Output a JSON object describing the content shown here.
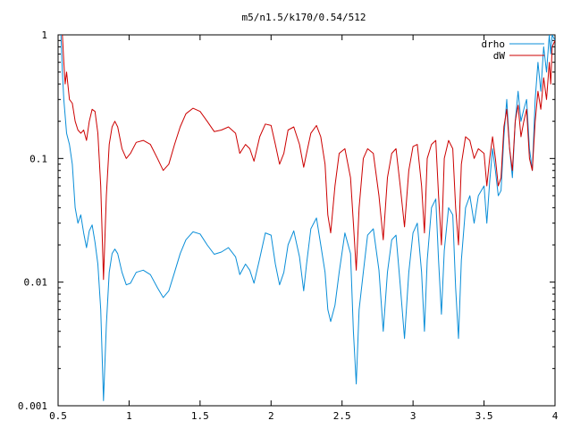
{
  "chart_data": {
    "type": "line",
    "title": "m5/n1.5/k170/0.54/512",
    "xlabel": "",
    "ylabel": "",
    "xlim": [
      0.5,
      4
    ],
    "ylim": [
      0.001,
      1
    ],
    "yscale": "log",
    "grid": false,
    "legend_position": "top-right",
    "xticks": [
      0.5,
      1,
      1.5,
      2,
      2.5,
      3,
      3.5,
      4
    ],
    "xtick_labels": [
      "0.5",
      "1",
      "1.5",
      "2",
      "2.5",
      "3",
      "3.5",
      "4"
    ],
    "yticks": [
      0.001,
      0.01,
      0.1,
      1
    ],
    "ytick_labels": [
      "0.001",
      "0.01",
      "0.1",
      "1"
    ],
    "series": [
      {
        "name": "drho",
        "color": "#0a8ed8",
        "points": [
          [
            0.52,
            1.0
          ],
          [
            0.53,
            0.5
          ],
          [
            0.54,
            0.3
          ],
          [
            0.56,
            0.16
          ],
          [
            0.58,
            0.13
          ],
          [
            0.6,
            0.09
          ],
          [
            0.62,
            0.04
          ],
          [
            0.64,
            0.03
          ],
          [
            0.66,
            0.035
          ],
          [
            0.68,
            0.025
          ],
          [
            0.7,
            0.019
          ],
          [
            0.72,
            0.026
          ],
          [
            0.74,
            0.029
          ],
          [
            0.76,
            0.021
          ],
          [
            0.78,
            0.014
          ],
          [
            0.8,
            0.006
          ],
          [
            0.82,
            0.0011
          ],
          [
            0.84,
            0.0045
          ],
          [
            0.86,
            0.012
          ],
          [
            0.88,
            0.017
          ],
          [
            0.9,
            0.0185
          ],
          [
            0.92,
            0.017
          ],
          [
            0.95,
            0.012
          ],
          [
            0.98,
            0.0095
          ],
          [
            1.01,
            0.0098
          ],
          [
            1.05,
            0.012
          ],
          [
            1.1,
            0.0125
          ],
          [
            1.15,
            0.0115
          ],
          [
            1.2,
            0.009
          ],
          [
            1.24,
            0.0075
          ],
          [
            1.28,
            0.0085
          ],
          [
            1.32,
            0.012
          ],
          [
            1.36,
            0.017
          ],
          [
            1.4,
            0.022
          ],
          [
            1.45,
            0.0255
          ],
          [
            1.5,
            0.0245
          ],
          [
            1.55,
            0.02
          ],
          [
            1.6,
            0.0168
          ],
          [
            1.65,
            0.0175
          ],
          [
            1.7,
            0.019
          ],
          [
            1.75,
            0.016
          ],
          [
            1.78,
            0.0115
          ],
          [
            1.82,
            0.014
          ],
          [
            1.85,
            0.0125
          ],
          [
            1.88,
            0.0098
          ],
          [
            1.92,
            0.0155
          ],
          [
            1.96,
            0.025
          ],
          [
            2.0,
            0.024
          ],
          [
            2.03,
            0.014
          ],
          [
            2.06,
            0.0095
          ],
          [
            2.09,
            0.012
          ],
          [
            2.12,
            0.02
          ],
          [
            2.16,
            0.026
          ],
          [
            2.2,
            0.016
          ],
          [
            2.23,
            0.0085
          ],
          [
            2.25,
            0.014
          ],
          [
            2.28,
            0.027
          ],
          [
            2.32,
            0.033
          ],
          [
            2.35,
            0.02
          ],
          [
            2.38,
            0.012
          ],
          [
            2.4,
            0.006
          ],
          [
            2.42,
            0.0048
          ],
          [
            2.45,
            0.0065
          ],
          [
            2.48,
            0.012
          ],
          [
            2.52,
            0.025
          ],
          [
            2.56,
            0.017
          ],
          [
            2.58,
            0.004
          ],
          [
            2.6,
            0.0015
          ],
          [
            2.62,
            0.006
          ],
          [
            2.65,
            0.012
          ],
          [
            2.68,
            0.024
          ],
          [
            2.72,
            0.027
          ],
          [
            2.76,
            0.0125
          ],
          [
            2.79,
            0.004
          ],
          [
            2.82,
            0.012
          ],
          [
            2.85,
            0.022
          ],
          [
            2.88,
            0.024
          ],
          [
            2.91,
            0.0095
          ],
          [
            2.94,
            0.0035
          ],
          [
            2.97,
            0.012
          ],
          [
            3.0,
            0.025
          ],
          [
            3.03,
            0.03
          ],
          [
            3.06,
            0.012
          ],
          [
            3.08,
            0.004
          ],
          [
            3.1,
            0.015
          ],
          [
            3.13,
            0.04
          ],
          [
            3.16,
            0.047
          ],
          [
            3.18,
            0.015
          ],
          [
            3.2,
            0.0055
          ],
          [
            3.22,
            0.018
          ],
          [
            3.25,
            0.04
          ],
          [
            3.28,
            0.035
          ],
          [
            3.3,
            0.009
          ],
          [
            3.32,
            0.0035
          ],
          [
            3.34,
            0.015
          ],
          [
            3.37,
            0.04
          ],
          [
            3.4,
            0.05
          ],
          [
            3.43,
            0.03
          ],
          [
            3.46,
            0.05
          ],
          [
            3.5,
            0.06
          ],
          [
            3.52,
            0.03
          ],
          [
            3.54,
            0.065
          ],
          [
            3.56,
            0.12
          ],
          [
            3.58,
            0.08
          ],
          [
            3.6,
            0.05
          ],
          [
            3.62,
            0.055
          ],
          [
            3.64,
            0.15
          ],
          [
            3.66,
            0.3
          ],
          [
            3.68,
            0.12
          ],
          [
            3.7,
            0.07
          ],
          [
            3.72,
            0.2
          ],
          [
            3.74,
            0.35
          ],
          [
            3.76,
            0.2
          ],
          [
            3.78,
            0.25
          ],
          [
            3.8,
            0.3
          ],
          [
            3.82,
            0.12
          ],
          [
            3.84,
            0.08
          ],
          [
            3.86,
            0.3
          ],
          [
            3.88,
            0.6
          ],
          [
            3.9,
            0.35
          ],
          [
            3.92,
            0.8
          ],
          [
            3.94,
            0.5
          ],
          [
            3.96,
            1.0
          ],
          [
            3.97,
            0.7
          ],
          [
            3.98,
            1.0
          ],
          [
            4.0,
            0.9
          ]
        ]
      },
      {
        "name": "dW",
        "color": "#cc0000",
        "points": [
          [
            0.53,
            1.0
          ],
          [
            0.54,
            0.6
          ],
          [
            0.55,
            0.4
          ],
          [
            0.56,
            0.5
          ],
          [
            0.58,
            0.3
          ],
          [
            0.6,
            0.28
          ],
          [
            0.62,
            0.2
          ],
          [
            0.64,
            0.17
          ],
          [
            0.66,
            0.16
          ],
          [
            0.68,
            0.17
          ],
          [
            0.7,
            0.14
          ],
          [
            0.72,
            0.2
          ],
          [
            0.74,
            0.25
          ],
          [
            0.76,
            0.24
          ],
          [
            0.78,
            0.16
          ],
          [
            0.8,
            0.06
          ],
          [
            0.82,
            0.0105
          ],
          [
            0.84,
            0.05
          ],
          [
            0.86,
            0.13
          ],
          [
            0.88,
            0.18
          ],
          [
            0.9,
            0.2
          ],
          [
            0.92,
            0.18
          ],
          [
            0.95,
            0.12
          ],
          [
            0.98,
            0.1
          ],
          [
            1.01,
            0.11
          ],
          [
            1.05,
            0.135
          ],
          [
            1.1,
            0.14
          ],
          [
            1.15,
            0.13
          ],
          [
            1.2,
            0.1
          ],
          [
            1.24,
            0.08
          ],
          [
            1.28,
            0.09
          ],
          [
            1.32,
            0.13
          ],
          [
            1.36,
            0.18
          ],
          [
            1.4,
            0.23
          ],
          [
            1.45,
            0.255
          ],
          [
            1.5,
            0.24
          ],
          [
            1.55,
            0.2
          ],
          [
            1.6,
            0.165
          ],
          [
            1.65,
            0.17
          ],
          [
            1.7,
            0.18
          ],
          [
            1.75,
            0.16
          ],
          [
            1.78,
            0.11
          ],
          [
            1.82,
            0.13
          ],
          [
            1.85,
            0.12
          ],
          [
            1.88,
            0.095
          ],
          [
            1.92,
            0.15
          ],
          [
            1.96,
            0.19
          ],
          [
            2.0,
            0.185
          ],
          [
            2.03,
            0.13
          ],
          [
            2.06,
            0.09
          ],
          [
            2.09,
            0.11
          ],
          [
            2.12,
            0.17
          ],
          [
            2.16,
            0.18
          ],
          [
            2.2,
            0.13
          ],
          [
            2.23,
            0.085
          ],
          [
            2.25,
            0.11
          ],
          [
            2.28,
            0.16
          ],
          [
            2.32,
            0.185
          ],
          [
            2.35,
            0.15
          ],
          [
            2.38,
            0.09
          ],
          [
            2.4,
            0.035
          ],
          [
            2.42,
            0.025
          ],
          [
            2.45,
            0.06
          ],
          [
            2.48,
            0.11
          ],
          [
            2.52,
            0.12
          ],
          [
            2.56,
            0.07
          ],
          [
            2.58,
            0.03
          ],
          [
            2.6,
            0.0125
          ],
          [
            2.62,
            0.04
          ],
          [
            2.65,
            0.1
          ],
          [
            2.68,
            0.12
          ],
          [
            2.72,
            0.11
          ],
          [
            2.76,
            0.05
          ],
          [
            2.79,
            0.022
          ],
          [
            2.82,
            0.07
          ],
          [
            2.85,
            0.11
          ],
          [
            2.88,
            0.12
          ],
          [
            2.91,
            0.06
          ],
          [
            2.94,
            0.028
          ],
          [
            2.97,
            0.08
          ],
          [
            3.0,
            0.125
          ],
          [
            3.03,
            0.13
          ],
          [
            3.06,
            0.06
          ],
          [
            3.08,
            0.025
          ],
          [
            3.1,
            0.1
          ],
          [
            3.13,
            0.13
          ],
          [
            3.16,
            0.14
          ],
          [
            3.18,
            0.05
          ],
          [
            3.2,
            0.02
          ],
          [
            3.22,
            0.1
          ],
          [
            3.25,
            0.14
          ],
          [
            3.28,
            0.12
          ],
          [
            3.3,
            0.04
          ],
          [
            3.32,
            0.02
          ],
          [
            3.34,
            0.09
          ],
          [
            3.37,
            0.15
          ],
          [
            3.4,
            0.14
          ],
          [
            3.43,
            0.1
          ],
          [
            3.46,
            0.12
          ],
          [
            3.5,
            0.11
          ],
          [
            3.52,
            0.06
          ],
          [
            3.54,
            0.1
          ],
          [
            3.56,
            0.15
          ],
          [
            3.58,
            0.1
          ],
          [
            3.6,
            0.06
          ],
          [
            3.62,
            0.07
          ],
          [
            3.64,
            0.18
          ],
          [
            3.66,
            0.25
          ],
          [
            3.68,
            0.12
          ],
          [
            3.7,
            0.08
          ],
          [
            3.72,
            0.2
          ],
          [
            3.74,
            0.27
          ],
          [
            3.76,
            0.15
          ],
          [
            3.78,
            0.2
          ],
          [
            3.8,
            0.25
          ],
          [
            3.82,
            0.1
          ],
          [
            3.84,
            0.08
          ],
          [
            3.86,
            0.2
          ],
          [
            3.88,
            0.35
          ],
          [
            3.9,
            0.25
          ],
          [
            3.92,
            0.45
          ],
          [
            3.94,
            0.3
          ],
          [
            3.96,
            0.6
          ],
          [
            3.97,
            0.4
          ],
          [
            3.98,
            0.8
          ],
          [
            4.0,
            0.9
          ]
        ]
      }
    ]
  }
}
